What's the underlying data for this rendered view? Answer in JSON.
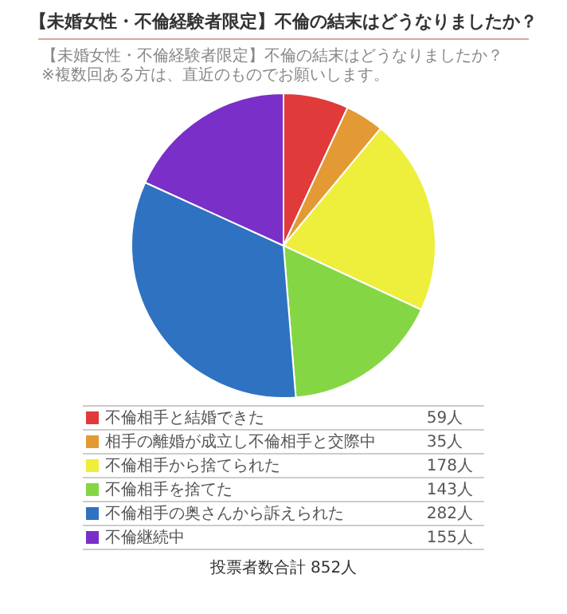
{
  "chart_data": {
    "type": "pie",
    "title": "【未婚女性・不倫経験者限定】不倫の結末はどうなりましたか？",
    "subtitle": "【未婚女性・不倫経験者限定】不倫の結末はどうなりましたか？",
    "annotations": [
      "※複数回ある方は、直近のものでお願いします。",
      "投票者数合計 852人"
    ],
    "categories": [
      "不倫相手と結婚できた",
      "相手の離婚が成立し不倫相手と交際中",
      "不倫相手から捨てられた",
      "不倫相手を捨てた",
      "不倫相手の奥さんから訴えられた",
      "不倫継続中"
    ],
    "values": [
      59,
      35,
      178,
      143,
      282,
      155
    ],
    "value_labels": [
      "59人",
      "35人",
      "178人",
      "143人",
      "282人",
      "155人"
    ],
    "colors": [
      "#e03a3a",
      "#e39a35",
      "#eeee3c",
      "#85d645",
      "#2f72c2",
      "#7a2fc8"
    ],
    "legend": "bottom"
  }
}
